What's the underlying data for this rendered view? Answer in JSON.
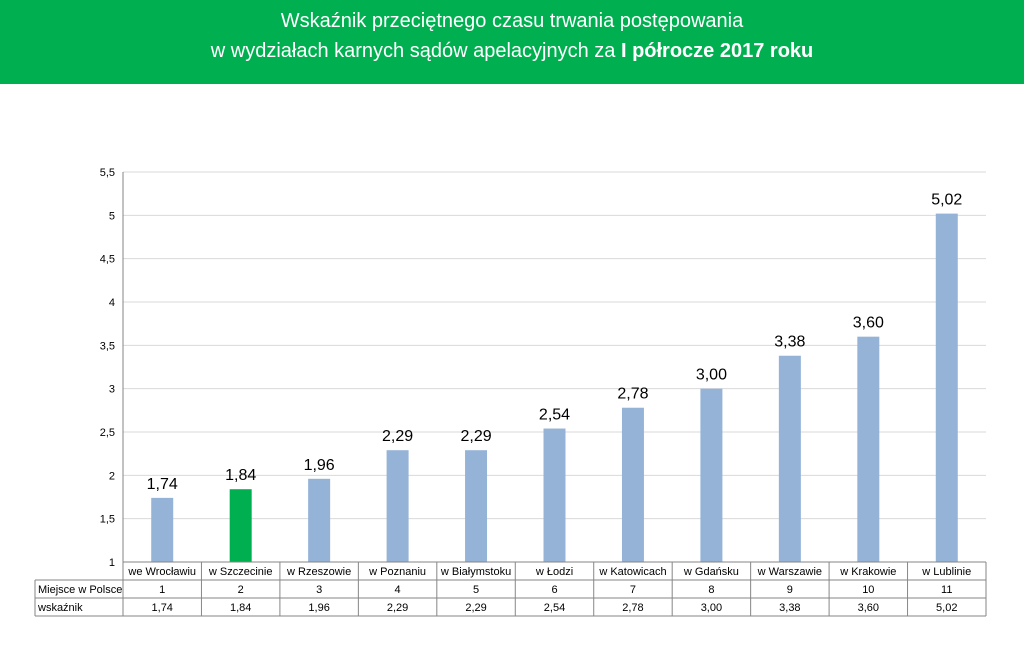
{
  "header": {
    "title_line1": "Wskaźnik przeciętnego czasu trwania postępowania",
    "title_line2_prefix": "w wydziałach karnych sądów apelacyjnych za ",
    "title_line2_bold": "I półrocze 2017 roku",
    "background_color": "#00b050"
  },
  "chart_data": {
    "type": "bar",
    "categories": [
      "we Wrocławiu",
      "w Szczecinie",
      "w Rzeszowie",
      "w Poznaniu",
      "w Białymstoku",
      "w Łodzi",
      "w Katowicach",
      "w Gdańsku",
      "w Warszawie",
      "w Krakowie",
      "w Lublinie"
    ],
    "values": [
      1.74,
      1.84,
      1.96,
      2.29,
      2.29,
      2.54,
      2.78,
      3.0,
      3.38,
      3.6,
      5.02
    ],
    "data_labels": [
      "1,74",
      "1,84",
      "1,96",
      "2,29",
      "2,29",
      "2,54",
      "2,78",
      "3,00",
      "3,38",
      "3,60",
      "5,02"
    ],
    "ylim": [
      1,
      5.5
    ],
    "yticks": [
      1,
      1.5,
      2,
      2.5,
      3,
      3.5,
      4,
      4.5,
      5,
      5.5
    ],
    "ytick_labels": [
      "1",
      "1,5",
      "2",
      "2,5",
      "3",
      "3,5",
      "4",
      "4,5",
      "5",
      "5,5"
    ],
    "grid": true,
    "bar_color": "#95b3d7",
    "highlight_index": 1,
    "highlight_color": "#00b050",
    "table": {
      "rows": [
        {
          "header": "Miejsce w Polsce",
          "cells": [
            "1",
            "2",
            "3",
            "4",
            "5",
            "6",
            "7",
            "8",
            "9",
            "10",
            "11"
          ]
        },
        {
          "header": "wskaźnik",
          "cells": [
            "1,74",
            "1,84",
            "1,96",
            "2,29",
            "2,29",
            "2,54",
            "2,78",
            "3,00",
            "3,38",
            "3,60",
            "5,02"
          ]
        }
      ]
    }
  }
}
